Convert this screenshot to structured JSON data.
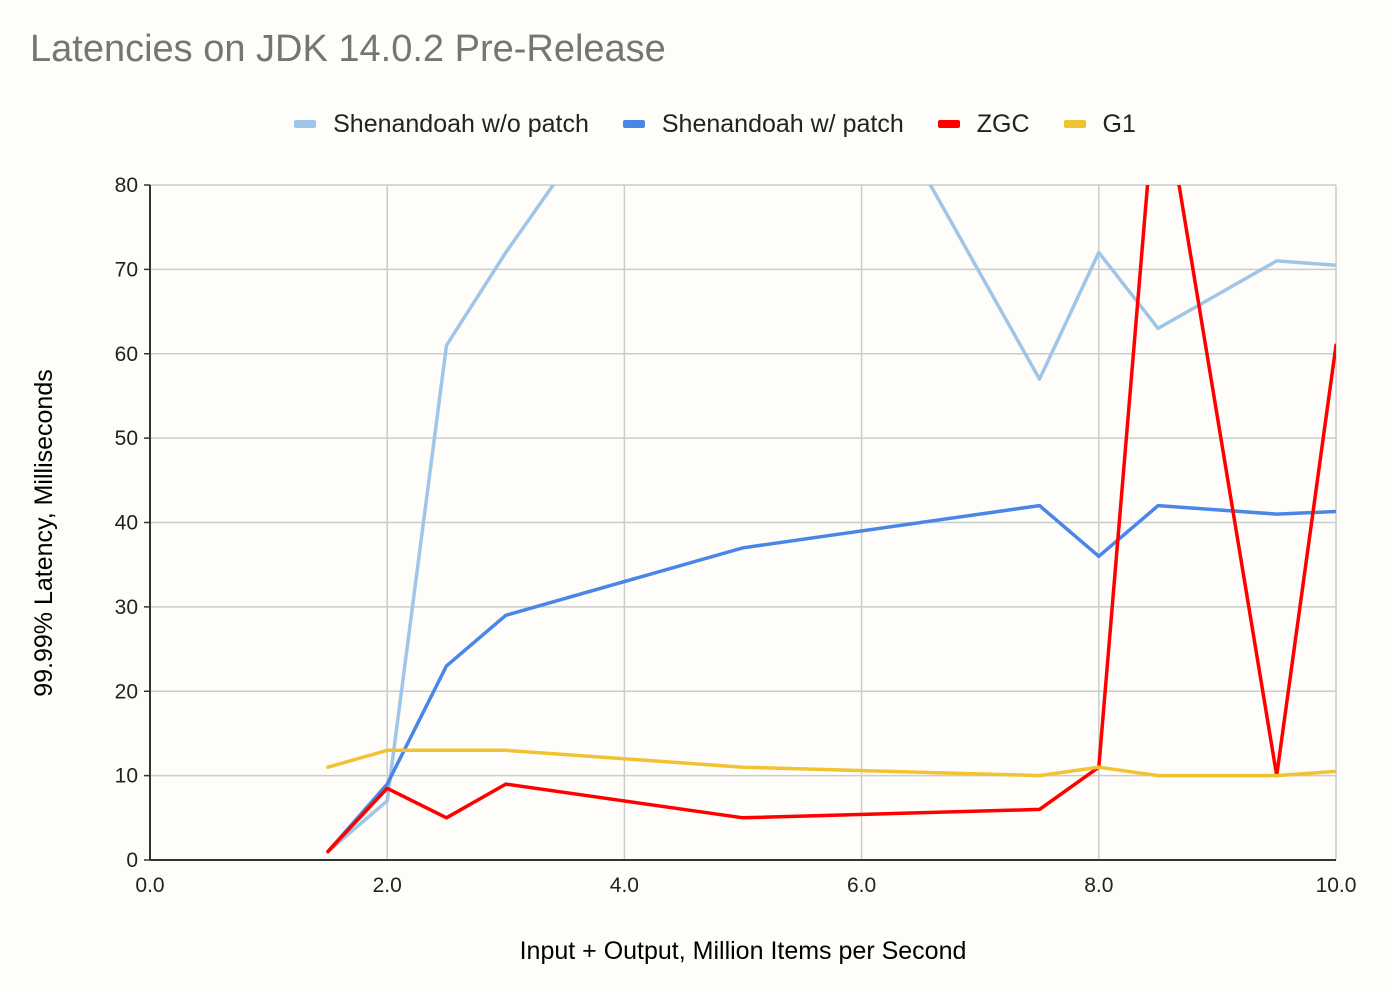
{
  "chart_data": {
    "type": "line",
    "title": "Latencies on JDK 14.0.2 Pre-Release",
    "xlabel": "Input + Output, Million Items per Second",
    "ylabel": "99.99% Latency, Milliseconds",
    "xlim": [
      0,
      10
    ],
    "ylim": [
      0,
      80
    ],
    "x_ticks": [
      "0.0",
      "2.0",
      "4.0",
      "6.0",
      "8.0",
      "10.0"
    ],
    "y_ticks": [
      "0",
      "10",
      "20",
      "30",
      "40",
      "50",
      "60",
      "70",
      "80"
    ],
    "grid": true,
    "legend_position": "top",
    "series": [
      {
        "name": "Shenandoah w/o patch",
        "color": "#9fc5e8",
        "points": [
          [
            1.5,
            1
          ],
          [
            2.0,
            7
          ],
          [
            2.5,
            61
          ],
          [
            3.0,
            72
          ],
          [
            3.5,
            82
          ],
          [
            6.5,
            82
          ],
          [
            7.5,
            57
          ],
          [
            8.0,
            72
          ],
          [
            8.5,
            63
          ],
          [
            9.5,
            71
          ],
          [
            10.0,
            70.5
          ]
        ]
      },
      {
        "name": "Shenandoah w/ patch",
        "color": "#4a86e8",
        "points": [
          [
            1.5,
            1
          ],
          [
            2.0,
            9
          ],
          [
            2.5,
            23
          ],
          [
            3.0,
            29
          ],
          [
            5.0,
            37
          ],
          [
            7.5,
            42
          ],
          [
            8.0,
            36
          ],
          [
            8.5,
            42
          ],
          [
            9.5,
            41
          ],
          [
            10.0,
            41.3
          ]
        ]
      },
      {
        "name": "ZGC",
        "color": "#ff0000",
        "points": [
          [
            1.5,
            1
          ],
          [
            2.0,
            8.5
          ],
          [
            2.5,
            5
          ],
          [
            3.0,
            9
          ],
          [
            5.0,
            5
          ],
          [
            7.5,
            6
          ],
          [
            8.0,
            11
          ],
          [
            8.5,
            95
          ],
          [
            9.5,
            10
          ],
          [
            10.0,
            61
          ]
        ]
      },
      {
        "name": "G1",
        "color": "#f1c232",
        "points": [
          [
            1.5,
            11
          ],
          [
            2.0,
            13
          ],
          [
            3.0,
            13
          ],
          [
            5.0,
            11
          ],
          [
            7.5,
            10
          ],
          [
            8.0,
            11
          ],
          [
            8.5,
            10
          ],
          [
            9.5,
            10
          ],
          [
            10.0,
            10.5
          ]
        ]
      }
    ]
  }
}
